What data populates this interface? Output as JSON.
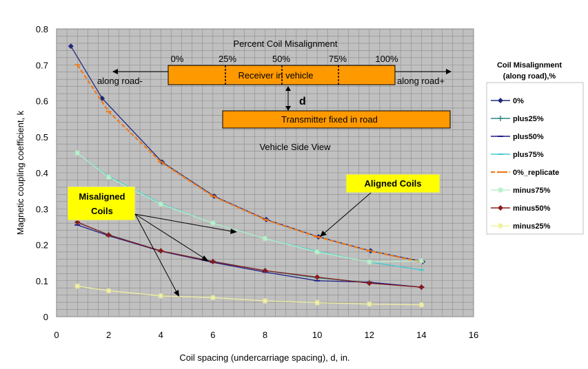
{
  "chart_data": {
    "type": "line",
    "title": "",
    "xlabel": "Coil spacing (undercarriage spacing), d, in.",
    "ylabel": "Magnetic coupling coefficient, k",
    "xlim": [
      0,
      16
    ],
    "ylim": [
      0,
      0.8
    ],
    "x_ticks": [
      0,
      2,
      4,
      6,
      8,
      10,
      12,
      14,
      16
    ],
    "y_ticks": [
      0,
      0.1,
      0.2,
      0.3,
      0.4,
      0.5,
      0.6,
      0.7,
      0.8
    ],
    "x_tick_labels": [
      "0",
      "2",
      "4",
      "6",
      "8",
      "10",
      "12",
      "14",
      "16"
    ],
    "y_tick_labels": [
      "0",
      "0.1",
      "0.2",
      "0.3",
      "0.4",
      "0.5",
      "0.6",
      "0.7",
      "0.8"
    ],
    "grid": true,
    "legend_title": "Coil Misalignment (along road),%",
    "legend_placement": "right",
    "series": [
      {
        "name": "0%",
        "color": "#1f2a7a",
        "marker": "diamond",
        "x": [
          0.55,
          1.75,
          4.05,
          6.05,
          8.05,
          10.05,
          12.05,
          14.05
        ],
        "y": [
          0.752,
          0.607,
          0.43,
          0.335,
          0.27,
          0.222,
          0.183,
          0.153
        ]
      },
      {
        "name": "plus25%",
        "color": "#2a8a82",
        "marker": "plus",
        "x": [
          0.8,
          2,
          4,
          6,
          8,
          10,
          12,
          14
        ],
        "y": [
          0.262,
          0.228,
          0.183,
          0.154,
          0.128,
          0.108,
          0.095,
          0.082
        ]
      },
      {
        "name": "plus50%",
        "color": "#1a1a8a",
        "marker": "dash",
        "x": [
          0.8,
          2,
          4,
          6,
          8,
          10,
          12,
          14
        ],
        "y": [
          0.255,
          0.225,
          0.182,
          0.151,
          0.124,
          0.1,
          0.096,
          0.082
        ]
      },
      {
        "name": "plus75%",
        "color": "#40c8d0",
        "marker": "dash",
        "x": [
          0.8,
          2,
          4,
          6,
          8,
          10,
          12,
          14
        ],
        "y": [
          0.455,
          0.39,
          0.315,
          0.26,
          0.217,
          0.182,
          0.152,
          0.13
        ]
      },
      {
        "name": "0%_replicate",
        "color": "#f07a1a",
        "marker": "dash",
        "dashed": true,
        "x": [
          0.8,
          2,
          4,
          6,
          8,
          10,
          12,
          14
        ],
        "y": [
          0.7,
          0.57,
          0.43,
          0.335,
          0.27,
          0.222,
          0.183,
          0.152
        ]
      },
      {
        "name": "minus75%",
        "color": "#b8f0c8",
        "marker": "star",
        "x": [
          0.8,
          2,
          4,
          6,
          8,
          10,
          12,
          14
        ],
        "y": [
          0.455,
          0.388,
          0.313,
          0.26,
          0.217,
          0.18,
          0.152,
          0.155
        ]
      },
      {
        "name": "minus50%",
        "color": "#8a1a1a",
        "marker": "diamond",
        "x": [
          0.8,
          2,
          4,
          6,
          8,
          10,
          12,
          14
        ],
        "y": [
          0.263,
          0.227,
          0.183,
          0.153,
          0.128,
          0.11,
          0.093,
          0.082
        ]
      },
      {
        "name": "minus25%",
        "color": "#f0f0a0",
        "marker": "star",
        "x": [
          0.8,
          2,
          4,
          6,
          8,
          10,
          12,
          14
        ],
        "y": [
          0.085,
          0.072,
          0.058,
          0.053,
          0.044,
          0.039,
          0.035,
          0.033
        ]
      }
    ],
    "annotations": {
      "percent_title": "Percent Coil Misalignment",
      "percent_labels": [
        "0%",
        "25%",
        "50%",
        "75%",
        "100%"
      ],
      "receiver_label": "Receiver in vehicle",
      "transmitter_label": "Transmitter fixed in road",
      "along_road_minus": "along road-",
      "along_road_plus": "along road+",
      "d_label": "d",
      "side_view_label": "Vehicle Side View",
      "aligned_label": "Aligned Coils",
      "misaligned_line1": "Misaligned",
      "misaligned_line2": "Coils",
      "box_color": "#ff9900",
      "callout_color": "#ffff00",
      "plot_bg_color": "#c0c0c0"
    }
  }
}
